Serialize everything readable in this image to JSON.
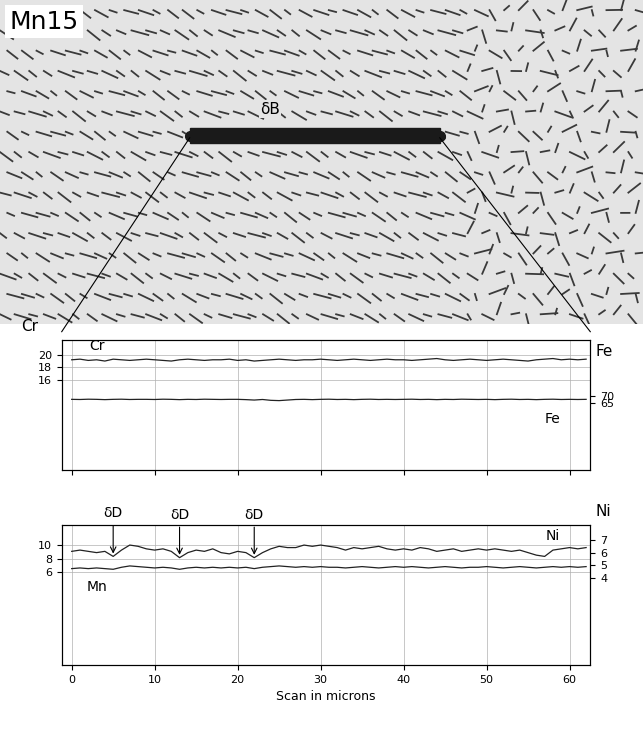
{
  "figure_label": "Mn15",
  "micrograph_annotation": "δB",
  "chart_data": [
    {
      "type": "line",
      "ylabel": "Cr",
      "y2label": "Fe",
      "x": [
        0,
        1,
        2,
        3,
        4,
        5,
        6,
        7,
        8,
        9,
        10,
        11,
        12,
        13,
        14,
        15,
        16,
        17,
        18,
        19,
        20,
        21,
        22,
        23,
        24,
        25,
        26,
        27,
        28,
        29,
        30,
        31,
        32,
        33,
        34,
        35,
        36,
        37,
        38,
        39,
        40,
        41,
        42,
        43,
        44,
        45,
        46,
        47,
        48,
        49,
        50,
        51,
        52,
        53,
        54,
        55,
        56,
        57,
        58,
        59,
        60,
        61,
        62
      ],
      "xlim": [
        -1.2,
        62.5
      ],
      "xticks": [
        0,
        10,
        20,
        30,
        40,
        50,
        60
      ],
      "ylim": [
        1.6,
        22.4
      ],
      "yticks": [
        16,
        18,
        20
      ],
      "y2lim": [
        17,
        110
      ],
      "y2ticks": [
        65,
        70
      ],
      "grid": true,
      "tick_labels": "y",
      "series": [
        {
          "name": "Cr",
          "color": "#222222",
          "values": [
            19.2,
            19.3,
            19.1,
            19.2,
            19.0,
            19.3,
            19.2,
            19.1,
            19.2,
            19.3,
            19.2,
            19.1,
            19.0,
            19.2,
            19.3,
            19.2,
            19.1,
            19.2,
            19.2,
            19.3,
            19.1,
            19.2,
            19.0,
            19.1,
            19.2,
            19.3,
            19.2,
            19.1,
            19.2,
            19.2,
            19.3,
            19.2,
            19.1,
            19.2,
            19.3,
            19.2,
            19.1,
            19.2,
            19.3,
            19.2,
            19.2,
            19.1,
            19.2,
            19.3,
            19.4,
            19.2,
            19.1,
            19.2,
            19.3,
            19.2,
            19.1,
            19.2,
            19.3,
            19.2,
            19.1,
            19.0,
            19.2,
            19.3,
            19.4,
            19.2,
            19.3,
            19.2,
            19.3
          ]
        },
        {
          "name": "Fe",
          "color": "#222222",
          "axis": "y2",
          "values": [
            67.5,
            67.4,
            67.6,
            67.5,
            67.3,
            67.5,
            67.6,
            67.4,
            67.5,
            67.5,
            67.4,
            67.6,
            67.5,
            67.3,
            67.5,
            67.4,
            67.6,
            67.5,
            67.4,
            67.5,
            67.5,
            67.3,
            67.0,
            67.4,
            66.8,
            66.6,
            67.0,
            67.4,
            67.5,
            67.3,
            67.5,
            67.6,
            67.4,
            67.5,
            67.3,
            67.5,
            67.6,
            67.4,
            67.5,
            67.4,
            67.5,
            67.6,
            67.4,
            67.5,
            67.3,
            67.5,
            67.4,
            67.6,
            67.5,
            67.4,
            67.5,
            67.3,
            67.5,
            67.6,
            67.4,
            67.5,
            67.3,
            67.5,
            67.6,
            67.4,
            67.5,
            67.4,
            67.5
          ]
        }
      ]
    },
    {
      "type": "line",
      "xlabel": "Scan in microns",
      "y2label": "Ni",
      "x": [
        0,
        1,
        2,
        3,
        4,
        5,
        6,
        7,
        8,
        9,
        10,
        11,
        12,
        13,
        14,
        15,
        16,
        17,
        18,
        19,
        20,
        21,
        22,
        23,
        24,
        25,
        26,
        27,
        28,
        29,
        30,
        31,
        32,
        33,
        34,
        35,
        36,
        37,
        38,
        39,
        40,
        41,
        42,
        43,
        44,
        45,
        46,
        47,
        48,
        49,
        50,
        51,
        52,
        53,
        54,
        55,
        56,
        57,
        58,
        59,
        60,
        61,
        62
      ],
      "xlim": [
        -1.2,
        62.5
      ],
      "xticks": [
        0,
        10,
        20,
        30,
        40,
        50,
        60
      ],
      "ylim": [
        -7.8,
        13
      ],
      "yticks": [
        6,
        8,
        10
      ],
      "y2lim": [
        -2.9,
        8.2
      ],
      "y2ticks": [
        4,
        5,
        6,
        7
      ],
      "grid": true,
      "annotations": [
        {
          "text": "δD",
          "x": 5
        },
        {
          "text": "δD",
          "x": 13
        },
        {
          "text": "δD",
          "x": 22
        }
      ],
      "series": [
        {
          "name": "Ni",
          "color": "#222222",
          "axis": "y2",
          "values": [
            6.1,
            6.2,
            6.1,
            6.0,
            6.1,
            5.7,
            6.2,
            6.6,
            6.5,
            6.3,
            6.2,
            6.3,
            6.1,
            5.6,
            6.0,
            6.2,
            6.1,
            6.3,
            6.0,
            5.9,
            6.1,
            6.0,
            5.6,
            6.0,
            6.3,
            6.5,
            6.4,
            6.4,
            6.6,
            6.5,
            6.6,
            6.5,
            6.4,
            6.2,
            6.4,
            6.3,
            6.4,
            6.5,
            6.3,
            6.2,
            6.3,
            6.2,
            6.4,
            6.3,
            6.1,
            6.2,
            6.3,
            6.1,
            6.2,
            6.3,
            6.2,
            6.3,
            6.2,
            6.1,
            6.2,
            6.0,
            5.8,
            5.7,
            6.2,
            6.3,
            6.4,
            6.3,
            6.4
          ]
        },
        {
          "name": "Mn",
          "color": "#222222",
          "values": [
            6.5,
            6.6,
            6.5,
            6.6,
            6.5,
            6.4,
            6.7,
            6.9,
            6.8,
            6.7,
            6.6,
            6.7,
            6.6,
            6.4,
            6.6,
            6.7,
            6.6,
            6.7,
            6.6,
            6.7,
            6.6,
            6.7,
            6.5,
            6.7,
            6.8,
            6.9,
            6.8,
            6.7,
            6.8,
            6.7,
            6.8,
            6.7,
            6.7,
            6.6,
            6.7,
            6.8,
            6.7,
            6.6,
            6.7,
            6.8,
            6.7,
            6.8,
            6.7,
            6.6,
            6.7,
            6.8,
            6.7,
            6.6,
            6.7,
            6.7,
            6.8,
            6.7,
            6.6,
            6.7,
            6.8,
            6.7,
            6.6,
            6.7,
            6.8,
            6.7,
            6.8,
            6.7,
            6.8
          ]
        }
      ]
    }
  ]
}
